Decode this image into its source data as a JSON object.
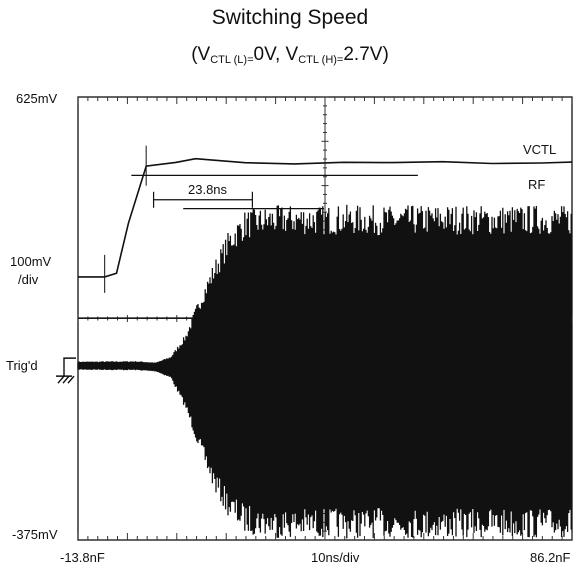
{
  "chart_data": {
    "type": "line",
    "title": "Switching Speed",
    "subtitle": {
      "open": "(V",
      "sub1": "CTL (L)=",
      "mid": "0V, V",
      "sub2": "CTL (H)=",
      "close": "2.7V)"
    },
    "y_top_label": "625mV",
    "y_scale_label_1": "100mV",
    "y_scale_label_2": "/div",
    "trigger_label": "Trig'd",
    "y_bottom_label": "-375mV",
    "x_left_label": "-13.8nF",
    "x_scale_label": "10ns/div",
    "x_right_label": "86.2nF",
    "annotation": "23.8ns",
    "ylim": [
      -375,
      625
    ],
    "xlim": [
      -13.8,
      86.2
    ],
    "series": [
      {
        "name": "VCTL",
        "x": [
          -13.8,
          -8.4,
          -6.0,
          -3.6,
          0.0,
          6.0,
          10.0,
          20.0,
          30.0,
          40.0,
          50.0,
          60.0,
          70.0,
          80.0,
          86.2
        ],
        "y": [
          219,
          219,
          227,
          340,
          470,
          477,
          486,
          476,
          474,
          475,
          474,
          476,
          474,
          475,
          476
        ]
      },
      {
        "name": "RF",
        "envelope": {
          "x": [
            -13.8,
            -2.0,
            2.0,
            5.0,
            8.0,
            11.0,
            14.0,
            17.0,
            20.0,
            25.0,
            30.0,
            35.0,
            40.0,
            50.0,
            60.0,
            70.0,
            80.0,
            86.2
          ],
          "upper": [
            28,
            29,
            26,
            40,
            90,
            180,
            260,
            330,
            370,
            380,
            382,
            381,
            382,
            380,
            383,
            381,
            382,
            380
          ],
          "lower": [
            9,
            8,
            5,
            -10,
            -80,
            -180,
            -270,
            -330,
            -360,
            -370,
            -372,
            -371,
            -372,
            -370,
            -373,
            -371,
            -372,
            -370
          ]
        }
      }
    ]
  }
}
